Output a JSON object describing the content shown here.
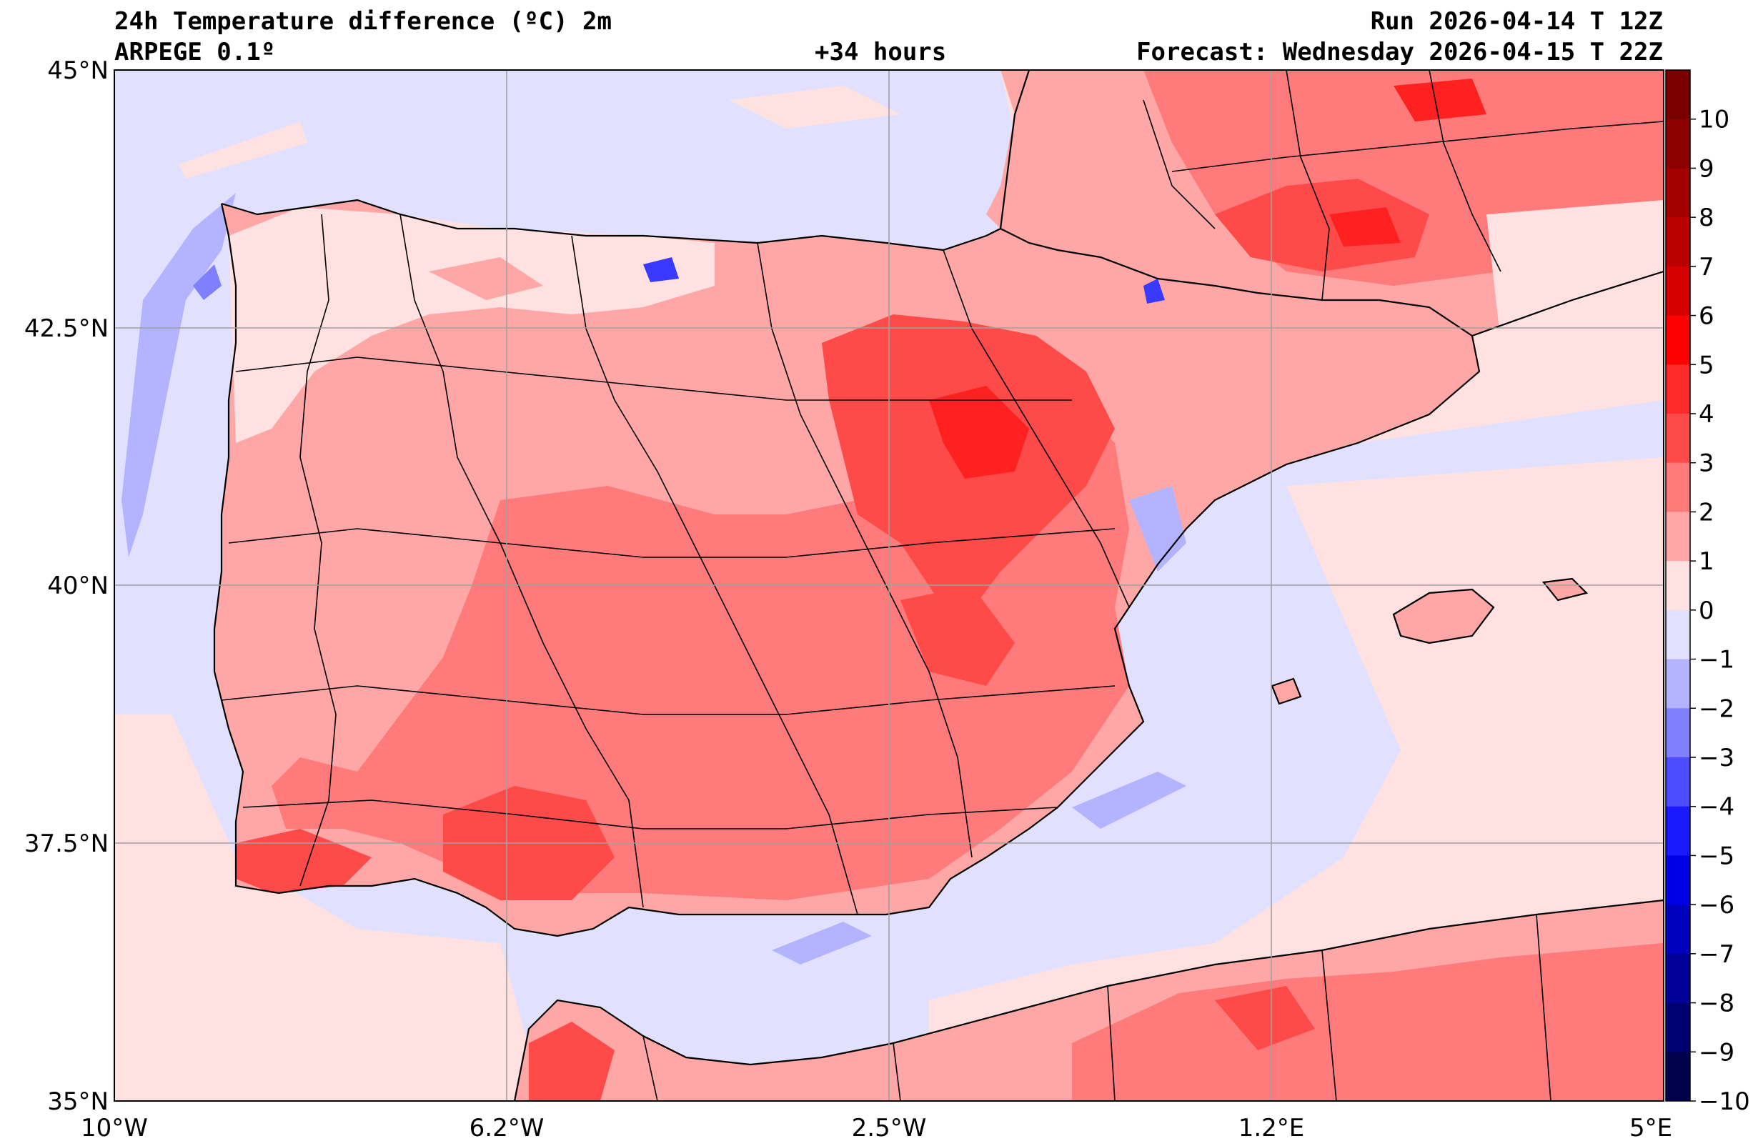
{
  "header": {
    "title": "24h Temperature difference (ºC) 2m",
    "model": "ARPEGE 0.1º",
    "lead_time": "+34 hours",
    "run": "Run 2026-04-14 T 12Z",
    "forecast": "Forecast: Wednesday 2026-04-15 T 22Z"
  },
  "axes": {
    "lat_labels": [
      "45°N",
      "42.5°N",
      "40°N",
      "37.5°N",
      "35°N"
    ],
    "lon_labels": [
      "10°W",
      "6.2°W",
      "2.5°W",
      "1.2°E",
      "5°E"
    ]
  },
  "colorbar": {
    "labels": [
      "10",
      "9",
      "8",
      "7",
      "6",
      "5",
      "4",
      "3",
      "2",
      "1",
      "0",
      "−1",
      "−2",
      "−3",
      "−4",
      "−5",
      "−6",
      "−7",
      "−8",
      "−9",
      "−10"
    ],
    "colors": [
      "#7a0000",
      "#8c0000",
      "#a30000",
      "#bb0000",
      "#d60000",
      "#ff0000",
      "#ff2a2a",
      "#ff4a4a",
      "#ff7a7a",
      "#ffa6a6",
      "#ffe1e1",
      "#e1e1ff",
      "#b3b3ff",
      "#8080ff",
      "#4d4dff",
      "#1a1aff",
      "#0000e6",
      "#0000bf",
      "#000099",
      "#000073",
      "#00004d"
    ]
  },
  "colors": {
    "sea_neutral_neg": "#e1e1ff",
    "neutral_pos": "#ffe1e1",
    "warm_1": "#ffa6a6",
    "warm_2": "#ff7a7a",
    "warm_3": "#ff4a4a",
    "warm_4": "#ff2020",
    "cool_1": "#b3b3ff",
    "cool_2": "#8080ff",
    "cool_3": "#3a3aff"
  }
}
